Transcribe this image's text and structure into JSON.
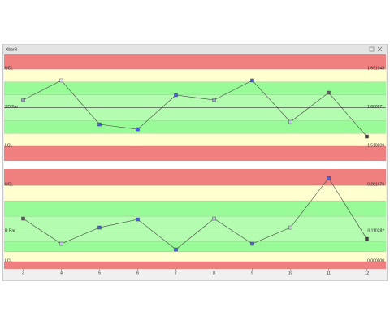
{
  "window": {
    "title": "XbarR"
  },
  "chart_data": [
    {
      "type": "line",
      "x": [
        3,
        4,
        5,
        6,
        7,
        8,
        9,
        10,
        11,
        12
      ],
      "values": [
        1.619,
        1.6645,
        1.5621,
        1.5507,
        1.6304,
        1.619,
        1.6645,
        1.5678,
        1.636,
        1.5337
      ],
      "marker_colors": [
        "#9aa0c8",
        "#e8e8f4",
        "#4a5ef0",
        "#4a5ef0",
        "#4a5ef0",
        "#9aa0c8",
        "#4a5ef0",
        "#c8cce8",
        "#606060",
        "#404040"
      ],
      "color": "#404040",
      "limits": [
        {
          "name": "UCL",
          "value": 1.691043
        },
        {
          "name": "XD Bar",
          "value": 1.600971
        },
        {
          "name": "LCL",
          "value": 1.510899
        }
      ],
      "xlim": [
        2.5,
        12.5
      ],
      "ylim": [
        1.477,
        1.725
      ]
    },
    {
      "type": "line",
      "x": [
        3,
        4,
        5,
        6,
        7,
        8,
        9,
        10,
        11,
        12
      ],
      "values": [
        0.1588,
        0.0659,
        0.1259,
        0.1558,
        0.0449,
        0.1588,
        0.0659,
        0.1259,
        0.3087,
        0.0839
      ],
      "marker_colors": [
        "#606060",
        "#c8cce8",
        "#4a5ef0",
        "#4a5ef0",
        "#4a5ef0",
        "#c8cce8",
        "#4a5ef0",
        "#c8cce8",
        "#4a5ef0",
        "#404040"
      ],
      "color": "#404040",
      "limits": [
        {
          "name": "UCL",
          "value": 0.281679
        },
        {
          "name": "R Bar",
          "value": 0.110282
        },
        {
          "name": "LCL",
          "value": 0,
          "label": "0.000000"
        }
      ],
      "xlim": [
        2.5,
        12.5
      ],
      "ylim": [
        -0.027,
        0.342
      ],
      "xticks": [
        3,
        4,
        5,
        6,
        7,
        8,
        9,
        10,
        11,
        12
      ]
    }
  ]
}
